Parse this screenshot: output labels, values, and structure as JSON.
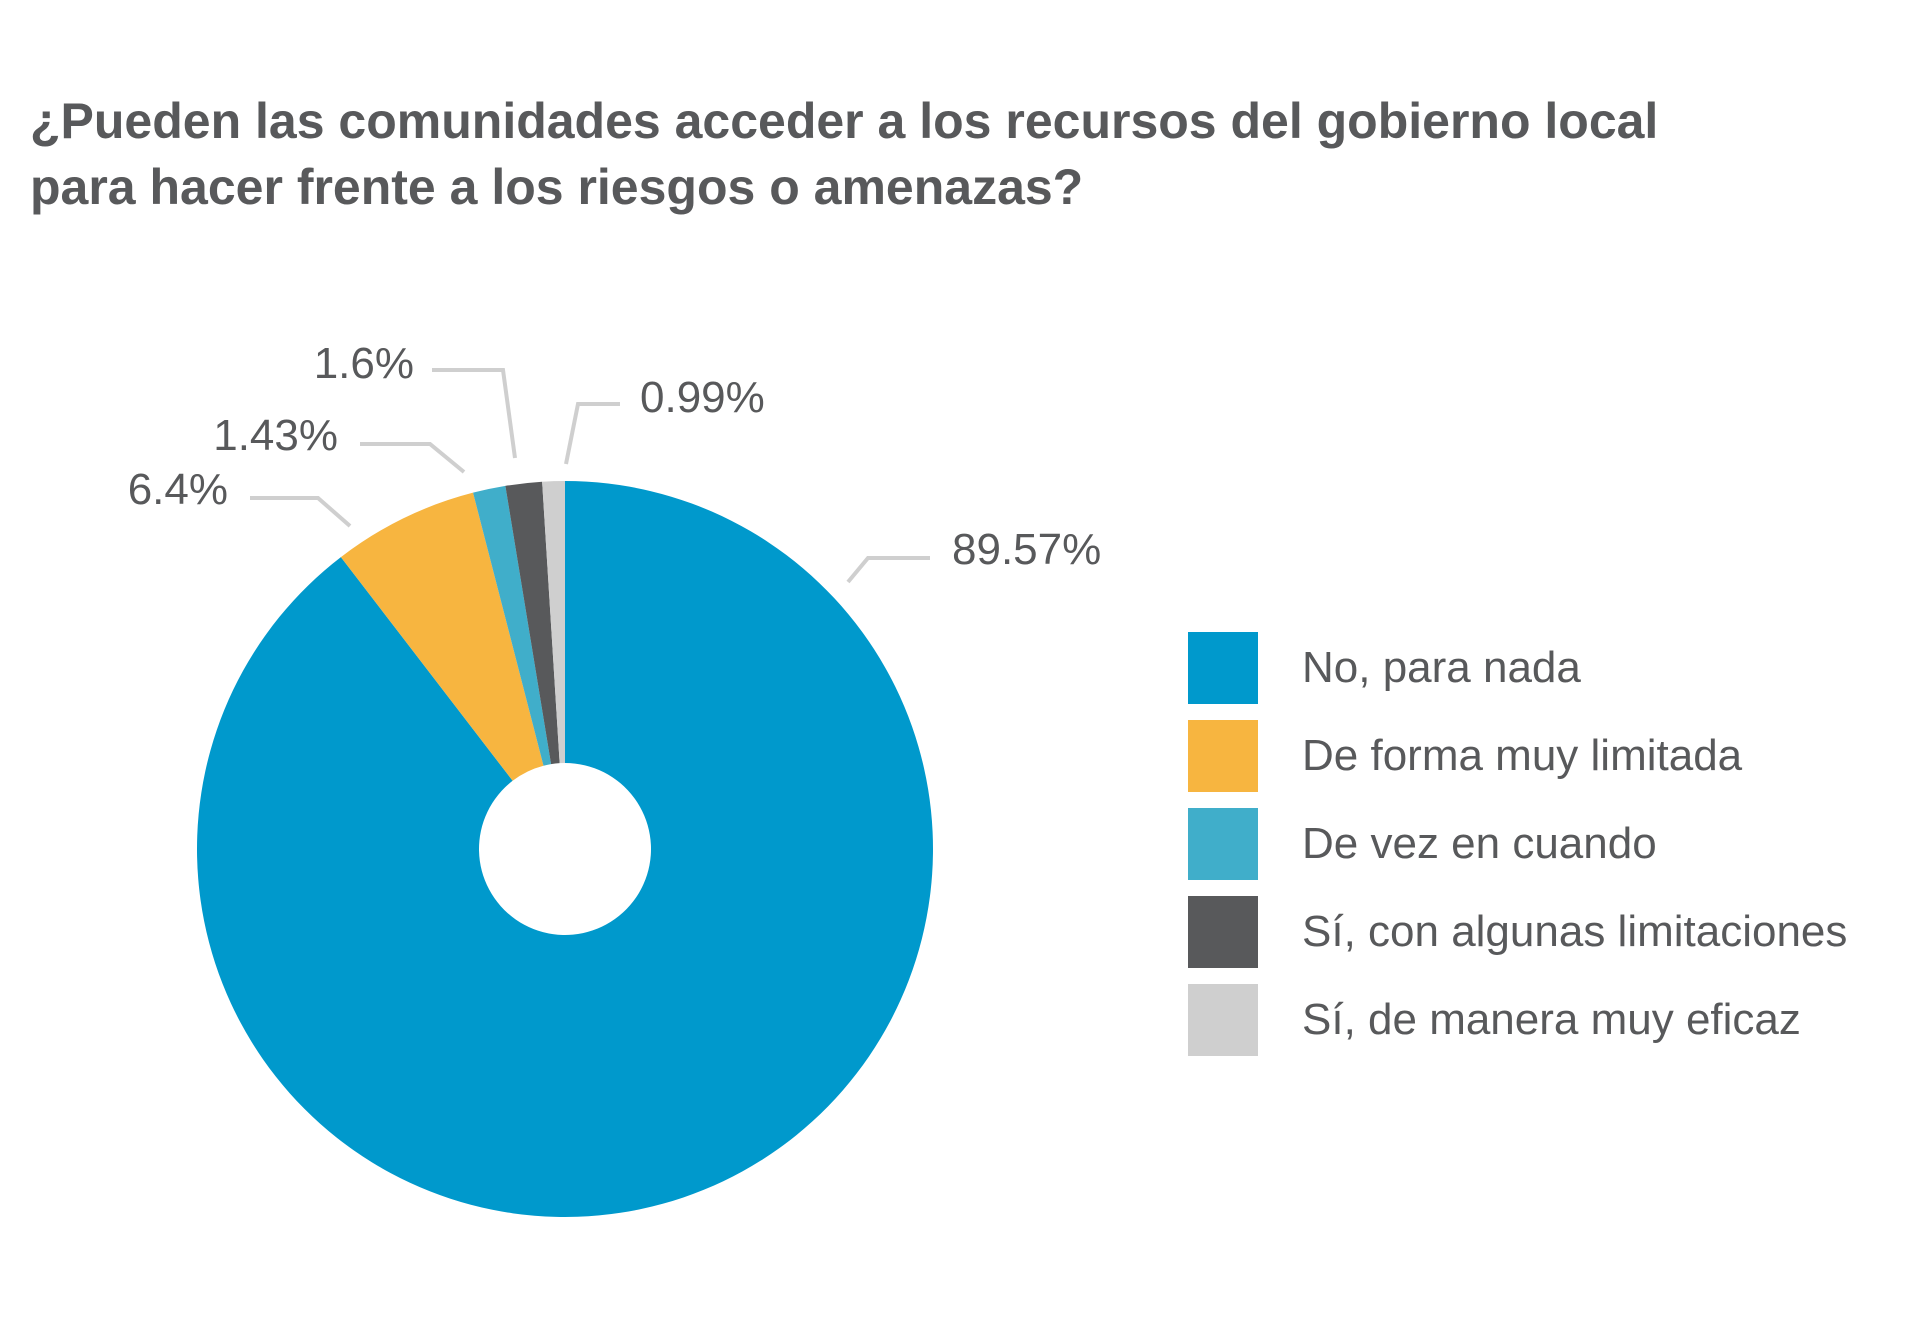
{
  "chart_data": {
    "type": "pie",
    "title_lines": [
      "¿Pueden las comunidades acceder a los recursos del gobierno local",
      "para hacer frente a los riesgos o amenazas?"
    ],
    "categories": [
      "No, para nada",
      "De forma muy limitada",
      "De vez en cuando",
      "Sí, con algunas limitaciones",
      "Sí, de manera muy eficaz"
    ],
    "values": [
      89.57,
      6.4,
      1.43,
      1.6,
      0.99
    ],
    "value_labels": [
      "89.57%",
      "6.4%",
      "1.43%",
      "1.6%",
      "0.99%"
    ],
    "colors": [
      "#0099cc",
      "#f7b540",
      "#40aeca",
      "#58595b",
      "#cfcfcf"
    ],
    "donut": true,
    "legend_position": "right"
  }
}
